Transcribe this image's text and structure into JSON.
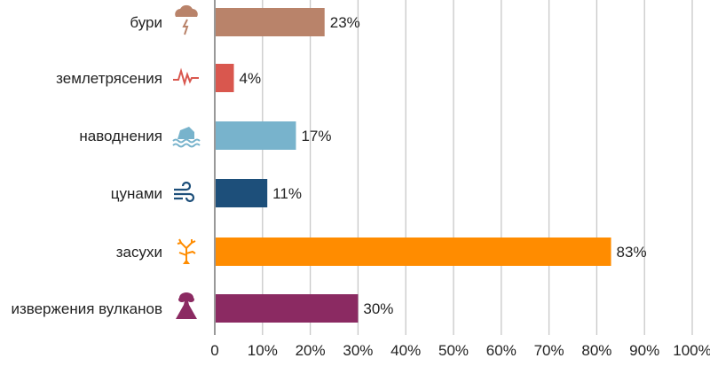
{
  "chart_data": {
    "type": "bar",
    "orientation": "horizontal",
    "title": "",
    "xlabel": "",
    "ylabel": "",
    "xlim": [
      0,
      100
    ],
    "grid": true,
    "categories": [
      "бури",
      "землетрясения",
      "наводнения",
      "цунами",
      "засухи",
      "извержения вулканов"
    ],
    "values": [
      23,
      4,
      17,
      11,
      83,
      30
    ],
    "value_labels": [
      "23%",
      "4%",
      "17%",
      "11%",
      "83%",
      "30%"
    ],
    "icons": [
      "storm-cloud-icon",
      "seismograph-icon",
      "flooded-house-icon",
      "wind-waves-icon",
      "dead-tree-icon",
      "volcano-icon"
    ],
    "colors": [
      "#b9836a",
      "#d9574e",
      "#78b3cc",
      "#1d4f7a",
      "#ff8c00",
      "#8b2a62"
    ],
    "x_ticks": [
      "0",
      "10%",
      "20%",
      "30%",
      "40%",
      "50%",
      "60%",
      "70%",
      "80%",
      "90%",
      "100%"
    ]
  }
}
